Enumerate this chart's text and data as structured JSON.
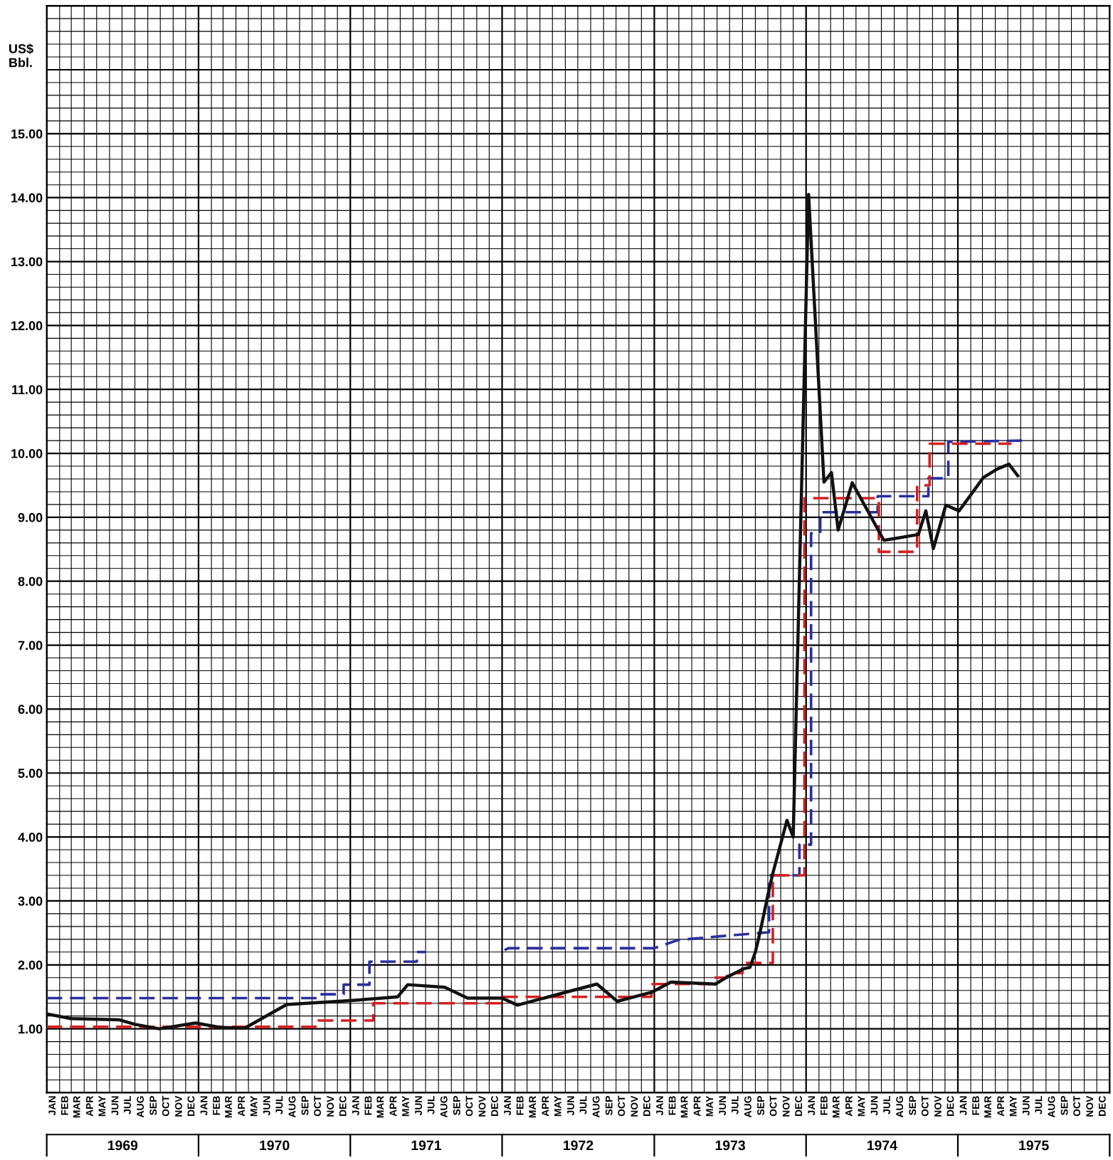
{
  "chart_data": {
    "type": "line",
    "ylabel": "US$\nBbl.",
    "xlim": [
      "1969-01-01",
      "1976-01-01"
    ],
    "ylim": [
      0,
      17
    ],
    "xticks": [
      {
        "value": "1969-01-16",
        "label": "JAN"
      },
      {
        "value": "1969-02-15",
        "label": "FEB"
      },
      {
        "value": "1969-03-16",
        "label": "MAR"
      },
      {
        "value": "1969-04-16",
        "label": "APR"
      },
      {
        "value": "1969-05-16",
        "label": "MAY"
      },
      {
        "value": "1969-06-16",
        "label": "JUN"
      },
      {
        "value": "1969-07-16",
        "label": "JUL"
      },
      {
        "value": "1969-08-16",
        "label": "AUG"
      },
      {
        "value": "1969-09-16",
        "label": "SEP"
      },
      {
        "value": "1969-10-16",
        "label": "OCT"
      },
      {
        "value": "1969-11-16",
        "label": "NOV"
      },
      {
        "value": "1969-12-16",
        "label": "DEC"
      },
      {
        "value": "1970-01-16",
        "label": "JAN"
      },
      {
        "value": "1970-02-15",
        "label": "FEB"
      },
      {
        "value": "1970-03-16",
        "label": "MAR"
      },
      {
        "value": "1970-04-16",
        "label": "APR"
      },
      {
        "value": "1970-05-16",
        "label": "MAY"
      },
      {
        "value": "1970-06-16",
        "label": "JUN"
      },
      {
        "value": "1970-07-16",
        "label": "JUL"
      },
      {
        "value": "1970-08-16",
        "label": "AUG"
      },
      {
        "value": "1970-09-16",
        "label": "SEP"
      },
      {
        "value": "1970-10-16",
        "label": "OCT"
      },
      {
        "value": "1970-11-16",
        "label": "NOV"
      },
      {
        "value": "1970-12-16",
        "label": "DEC"
      },
      {
        "value": "1971-01-16",
        "label": "JAN"
      },
      {
        "value": "1971-02-15",
        "label": "FEB"
      },
      {
        "value": "1971-03-16",
        "label": "MAR"
      },
      {
        "value": "1971-04-16",
        "label": "APR"
      },
      {
        "value": "1971-05-16",
        "label": "MAY"
      },
      {
        "value": "1971-06-16",
        "label": "JUN"
      },
      {
        "value": "1971-07-16",
        "label": "JUL"
      },
      {
        "value": "1971-08-16",
        "label": "AUG"
      },
      {
        "value": "1971-09-16",
        "label": "SEP"
      },
      {
        "value": "1971-10-16",
        "label": "OCT"
      },
      {
        "value": "1971-11-16",
        "label": "NOV"
      },
      {
        "value": "1971-12-16",
        "label": "DEC"
      },
      {
        "value": "1972-01-16",
        "label": "JAN"
      },
      {
        "value": "1972-02-15",
        "label": "FEB"
      },
      {
        "value": "1972-03-16",
        "label": "MAR"
      },
      {
        "value": "1972-04-16",
        "label": "APR"
      },
      {
        "value": "1972-05-16",
        "label": "MAY"
      },
      {
        "value": "1972-06-16",
        "label": "JUN"
      },
      {
        "value": "1972-07-16",
        "label": "JUL"
      },
      {
        "value": "1972-08-16",
        "label": "AUG"
      },
      {
        "value": "1972-09-16",
        "label": "SEP"
      },
      {
        "value": "1972-10-16",
        "label": "OCT"
      },
      {
        "value": "1972-11-16",
        "label": "NOV"
      },
      {
        "value": "1972-12-16",
        "label": "DEC"
      },
      {
        "value": "1973-01-16",
        "label": "JAN"
      },
      {
        "value": "1973-02-15",
        "label": "FEB"
      },
      {
        "value": "1973-03-16",
        "label": "MAR"
      },
      {
        "value": "1973-04-16",
        "label": "APR"
      },
      {
        "value": "1973-05-16",
        "label": "MAY"
      },
      {
        "value": "1973-06-16",
        "label": "JUN"
      },
      {
        "value": "1973-07-16",
        "label": "JUL"
      },
      {
        "value": "1973-08-16",
        "label": "AUG"
      },
      {
        "value": "1973-09-16",
        "label": "SEP"
      },
      {
        "value": "1973-10-16",
        "label": "OCT"
      },
      {
        "value": "1973-11-16",
        "label": "NOV"
      },
      {
        "value": "1973-12-16",
        "label": "DEC"
      },
      {
        "value": "1974-01-16",
        "label": "JAN"
      },
      {
        "value": "1974-02-15",
        "label": "FEB"
      },
      {
        "value": "1974-03-16",
        "label": "MAR"
      },
      {
        "value": "1974-04-16",
        "label": "APR"
      },
      {
        "value": "1974-05-16",
        "label": "MAY"
      },
      {
        "value": "1974-06-16",
        "label": "JUN"
      },
      {
        "value": "1974-07-16",
        "label": "JUL"
      },
      {
        "value": "1974-08-16",
        "label": "AUG"
      },
      {
        "value": "1974-09-16",
        "label": "SEP"
      },
      {
        "value": "1974-10-16",
        "label": "OCT"
      },
      {
        "value": "1974-11-16",
        "label": "NOV"
      },
      {
        "value": "1974-12-16",
        "label": "DEC"
      },
      {
        "value": "1975-01-16",
        "label": "JAN"
      },
      {
        "value": "1975-02-15",
        "label": "FEB"
      },
      {
        "value": "1975-03-16",
        "label": "MAR"
      },
      {
        "value": "1975-04-16",
        "label": "APR"
      },
      {
        "value": "1975-05-16",
        "label": "MAY"
      },
      {
        "value": "1975-06-16",
        "label": "JUN"
      },
      {
        "value": "1975-07-16",
        "label": "JUL"
      },
      {
        "value": "1975-08-16",
        "label": "AUG"
      },
      {
        "value": "1975-09-16",
        "label": "SEP"
      },
      {
        "value": "1975-10-16",
        "label": "OCT"
      },
      {
        "value": "1975-11-16",
        "label": "NOV"
      },
      {
        "value": "1975-12-16",
        "label": "DEC"
      }
    ],
    "annotations": [
      "1969",
      "1970",
      "1971",
      "1972",
      "1973",
      "1974",
      "1975"
    ],
    "yticks": [
      {
        "value": 1,
        "label": "1.00"
      },
      {
        "value": 2,
        "label": "2.00"
      },
      {
        "value": 3,
        "label": "3.00"
      },
      {
        "value": 4,
        "label": "4.00"
      },
      {
        "value": 5,
        "label": "5.00"
      },
      {
        "value": 6,
        "label": "6.00"
      },
      {
        "value": 7,
        "label": "7.00"
      },
      {
        "value": 8,
        "label": "8.00"
      },
      {
        "value": 9,
        "label": "9.00"
      },
      {
        "value": 10,
        "label": "10.00"
      },
      {
        "value": 11,
        "label": "11.00"
      },
      {
        "value": 12,
        "label": "12.00"
      },
      {
        "value": 13,
        "label": "13.00"
      },
      {
        "value": 14,
        "label": "14.00"
      },
      {
        "value": 15,
        "label": "15.00"
      }
    ],
    "grid": true,
    "marker": "none",
    "series": [
      {
        "color": "#2b2e9e",
        "line_style": "dashed",
        "x": [
          "1969-01-01",
          "1970-10-13",
          "1970-10-13",
          "1970-12-16",
          "1970-12-16",
          "1971-02-16",
          "1971-02-16",
          "1971-06-10",
          "1971-06-10",
          "1971-07-01"
        ],
        "values": [
          1.48,
          1.48,
          1.54,
          1.54,
          1.69,
          1.69,
          2.05,
          2.05,
          2.2,
          2.2
        ]
      },
      {
        "color": "#2b2e9e",
        "line_style": "dashed",
        "x": [
          "1972-01-07",
          "1972-01-16",
          "1973-01-01",
          "1973-02-28",
          "1973-06-13",
          "1973-10-04",
          "1973-10-04",
          "1973-12-16",
          "1973-12-16",
          "1974-01-13",
          "1974-01-13",
          "1974-02-04",
          "1974-02-04",
          "1974-06-22",
          "1974-06-22",
          "1974-10-22",
          "1974-10-22",
          "1974-12-09",
          "1974-12-09",
          "1975-06-07"
        ],
        "values": [
          2.23,
          2.26,
          2.26,
          2.39,
          2.45,
          2.51,
          3.4,
          3.4,
          3.88,
          3.88,
          8.75,
          8.75,
          9.08,
          9.08,
          9.33,
          9.33,
          9.61,
          9.61,
          10.18,
          10.2
        ]
      },
      {
        "color": "#d42020",
        "line_style": "dashed",
        "x": [
          "1969-01-01",
          "1970-10-16",
          "1970-10-16",
          "1971-02-25",
          "1971-02-25",
          "1972-01-01",
          "1972-01-01",
          "1972-12-25",
          "1972-12-25",
          "1973-05-22",
          "1973-05-22",
          "1973-06-25",
          "1973-06-25",
          "1973-08-01",
          "1973-08-01",
          "1973-10-13",
          "1973-10-13",
          "1973-12-28",
          "1973-12-28",
          "1974-06-25",
          "1974-06-25",
          "1974-09-25",
          "1974-09-25",
          "1974-10-25",
          "1974-10-25",
          "1975-05-10"
        ],
        "values": [
          1.03,
          1.03,
          1.13,
          1.13,
          1.4,
          1.4,
          1.5,
          1.5,
          1.7,
          1.7,
          1.8,
          1.8,
          1.87,
          1.87,
          2.03,
          2.03,
          3.4,
          3.4,
          9.3,
          9.3,
          8.46,
          8.46,
          9.5,
          9.5,
          10.15,
          10.15
        ]
      },
      {
        "color": "#111111",
        "line_style": "solid",
        "x": [
          "1969-01-03",
          "1969-02-28",
          "1969-06-25",
          "1969-08-01",
          "1969-09-28",
          "1969-12-25",
          "1970-02-25",
          "1970-04-22",
          "1970-08-01",
          "1971-01-01",
          "1971-04-25",
          "1971-05-19",
          "1971-08-16",
          "1971-10-10",
          "1972-01-01",
          "1972-02-07",
          "1972-06-07",
          "1972-08-16",
          "1972-10-04",
          "1972-12-25",
          "1973-02-10",
          "1973-05-28",
          "1973-06-28",
          "1973-08-04",
          "1973-08-19",
          "1973-09-01",
          "1973-09-13",
          "1973-10-02",
          "1973-10-13",
          "1973-11-16",
          "1973-12-01",
          "1974-01-07",
          "1974-02-13",
          "1974-03-03",
          "1974-03-19",
          "1974-04-22",
          "1974-07-07",
          "1974-09-28",
          "1974-10-16",
          "1974-11-03",
          "1974-12-03",
          "1975-01-04",
          "1975-03-03",
          "1975-04-07",
          "1975-05-04",
          "1975-05-25"
        ],
        "values": [
          1.23,
          1.16,
          1.14,
          1.07,
          1.0,
          1.09,
          1.02,
          1.01,
          1.38,
          1.44,
          1.5,
          1.69,
          1.65,
          1.48,
          1.48,
          1.37,
          1.58,
          1.7,
          1.43,
          1.57,
          1.73,
          1.7,
          1.82,
          1.94,
          1.96,
          2.2,
          2.53,
          3.12,
          3.43,
          4.26,
          4.0,
          14.05,
          9.55,
          9.7,
          8.8,
          9.54,
          8.64,
          8.73,
          9.1,
          8.51,
          9.19,
          9.1,
          9.62,
          9.76,
          9.83,
          9.65
        ]
      }
    ]
  }
}
